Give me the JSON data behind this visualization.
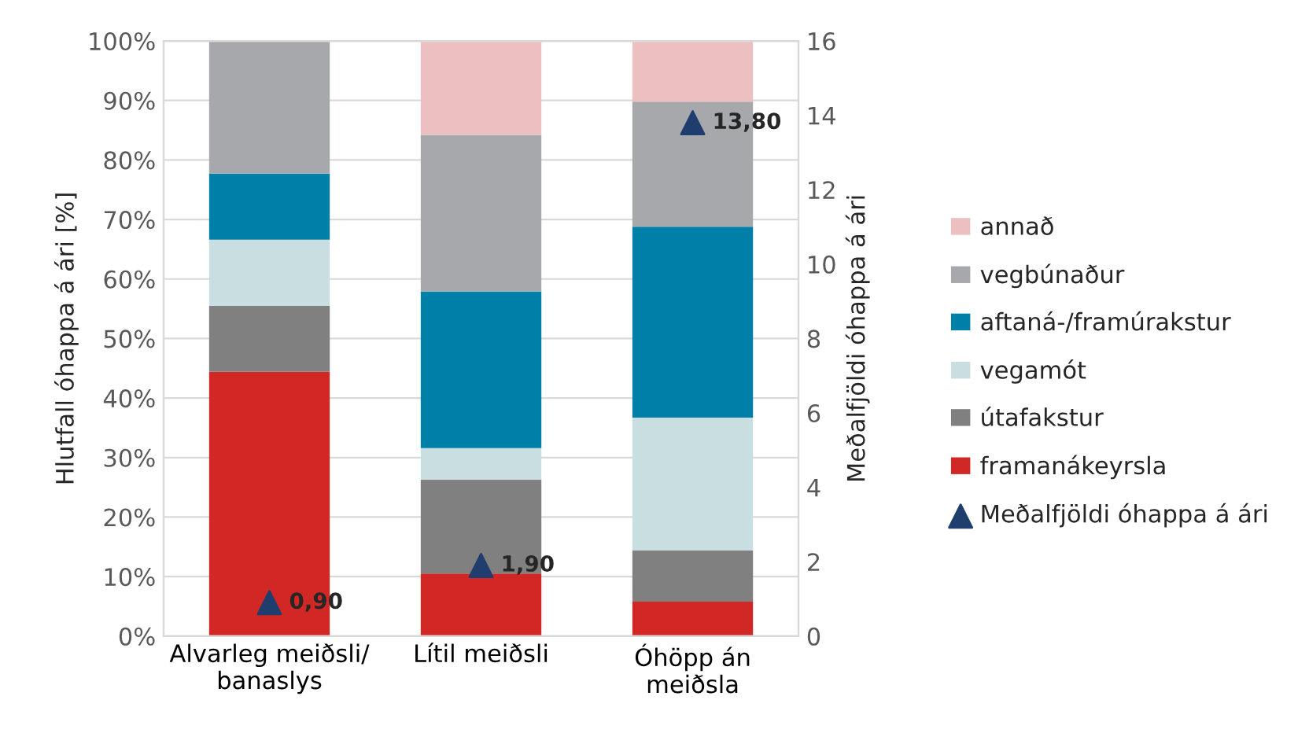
{
  "chart_data": {
    "type": "bar",
    "stacked": true,
    "categories": [
      "Alvarleg meiðsli/\nbanaslys",
      "Lítil meiðsli",
      "Óhöpp án\nmeiðsla"
    ],
    "ylabel": "Hlutfall óhappa á ári [%]",
    "y2label": "Meðalfjöldi óhappa á ári",
    "ylim": [
      0,
      100
    ],
    "yticks": [
      {
        "value": 0,
        "label": "0%"
      },
      {
        "value": 10,
        "label": "10%"
      },
      {
        "value": 20,
        "label": "20%"
      },
      {
        "value": 30,
        "label": "30%"
      },
      {
        "value": 40,
        "label": "40%"
      },
      {
        "value": 50,
        "label": "50%"
      },
      {
        "value": 60,
        "label": "60%"
      },
      {
        "value": 70,
        "label": "70%"
      },
      {
        "value": 80,
        "label": "80%"
      },
      {
        "value": 90,
        "label": "90%"
      },
      {
        "value": 100,
        "label": "100%"
      }
    ],
    "y2lim": [
      0,
      16
    ],
    "y2ticks": [
      0,
      2,
      4,
      6,
      8,
      10,
      12,
      14,
      16
    ],
    "grid": "y",
    "legend": "right",
    "series": [
      {
        "name": "framanákeyrsla",
        "color": "#d12826",
        "values": [
          44.4,
          10.5,
          5.8
        ]
      },
      {
        "name": "útafakstur",
        "color": "#808080",
        "values": [
          11.1,
          15.8,
          8.6
        ]
      },
      {
        "name": "vegamót",
        "color": "#c9dee1",
        "values": [
          11.1,
          5.3,
          22.3
        ]
      },
      {
        "name": "aftaná-/framúrakstur",
        "color": "#0080a8",
        "values": [
          11.1,
          26.3,
          32.1
        ]
      },
      {
        "name": "vegbúnaður",
        "color": "#a7a8ab",
        "values": [
          22.2,
          26.3,
          21.0
        ]
      },
      {
        "name": "annað",
        "color": "#ecbfc1",
        "values": [
          0,
          15.8,
          10.2
        ]
      },
      {
        "name": "Meðalfjöldi óhappa á ári",
        "type": "scatter",
        "axis": "y2",
        "marker": "triangle",
        "color": "#1f3e6e",
        "values": [
          0.9,
          1.9,
          13.8
        ],
        "value_labels": [
          "0,90",
          "1,90",
          "13,80"
        ]
      }
    ]
  }
}
